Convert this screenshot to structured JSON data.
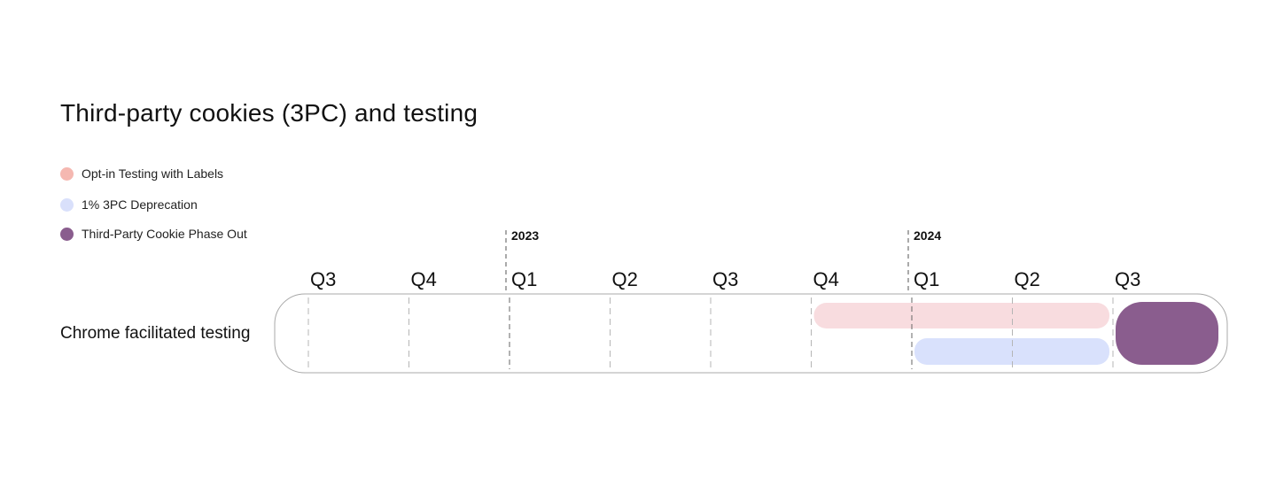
{
  "title": "Third-party cookies (3PC) and testing",
  "legend": [
    {
      "label": "Opt-in Testing with Labels",
      "color": "#f5b8b1"
    },
    {
      "label": "1% 3PC Deprecation",
      "color": "#d9e0fb"
    },
    {
      "label": "Third-Party Cookie Phase Out",
      "color": "#8a5d8e"
    }
  ],
  "row_label": "Chrome facilitated testing",
  "quarters": [
    "Q3",
    "Q4",
    "Q1",
    "Q2",
    "Q3",
    "Q4",
    "Q1",
    "Q2",
    "Q3"
  ],
  "years": [
    {
      "label": "2023",
      "starts_at_quarter": 2
    },
    {
      "label": "2024",
      "starts_at_quarter": 6
    }
  ],
  "bars": [
    {
      "name": "Opt-in Testing with Labels",
      "start_quarter": 5,
      "end_quarter": 7,
      "color": "#f8dcdf"
    },
    {
      "name": "1% 3PC Deprecation",
      "start_quarter": 6,
      "end_quarter": 7,
      "color": "#d9e1fc"
    },
    {
      "name": "Third-Party Cookie Phase Out",
      "start_quarter": 8,
      "end_quarter": 8,
      "color": "#8a5d8e"
    }
  ]
}
